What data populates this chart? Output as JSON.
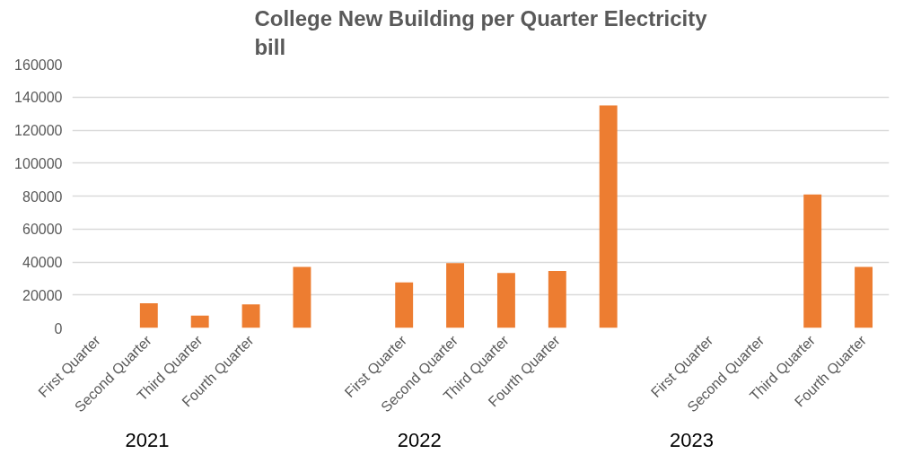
{
  "chart_data": {
    "type": "bar",
    "title": "College New Building per Quarter Electricity bill",
    "categories": [
      "First Quarter",
      "Second Quarter",
      "Third Quarter",
      "Fourth Quarter",
      null,
      null,
      "First Quarter",
      "Second Quarter",
      "Third Quarter",
      "Fourth Quarter",
      null,
      null,
      "First Quarter",
      "Second Quarter",
      "Third Quarter",
      "Fourth Quarter"
    ],
    "values": [
      null,
      15000,
      7500,
      14300,
      37000,
      null,
      27600,
      39300,
      33400,
      34500,
      135000,
      null,
      null,
      null,
      81000,
      37000
    ],
    "color": "#ed7d31",
    "ylim": [
      0,
      160000
    ],
    "yticks": [
      0,
      20000,
      40000,
      60000,
      80000,
      100000,
      120000,
      140000,
      160000
    ],
    "grid": "y",
    "annotations": [
      "2021",
      "2022",
      "2023"
    ]
  }
}
